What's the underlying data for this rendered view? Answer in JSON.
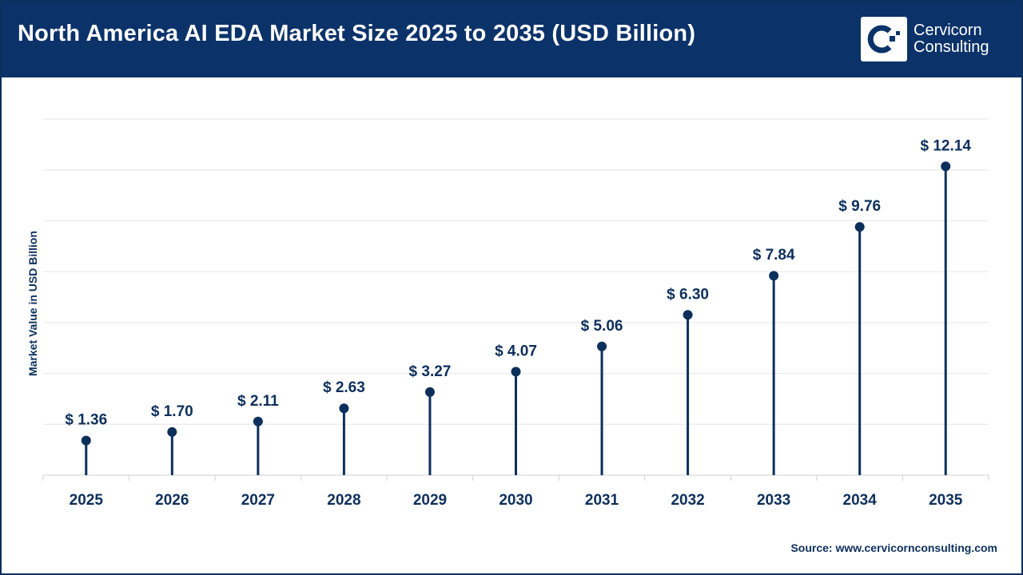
{
  "header": {
    "title": "North America AI EDA Market Size 2025 to 2035 (USD Billion)",
    "logo_line1": "Cervicorn",
    "logo_line2": "Consulting"
  },
  "source": "Source: www.cervicornconsulting.com",
  "colors": {
    "header_bg": "#0b3269",
    "series": "#0d2f5c",
    "grid": "#e6e6e6"
  },
  "chart_data": {
    "type": "lollipop",
    "title": "North America AI EDA Market Size 2025 to 2035 (USD Billion)",
    "xlabel": "",
    "ylabel": "Market Value in USD Billion",
    "categories": [
      "2025",
      "2026",
      "2027",
      "2028",
      "2029",
      "2030",
      "2031",
      "2032",
      "2033",
      "2034",
      "2035"
    ],
    "values": [
      1.36,
      1.7,
      2.11,
      2.63,
      3.27,
      4.07,
      5.06,
      6.3,
      7.84,
      9.76,
      12.14
    ],
    "data_labels": [
      "$ 1.36",
      "$ 1.70",
      "$ 2.11",
      "$ 2.63",
      "$ 3.27",
      "$ 4.07",
      "$ 5.06",
      "$ 6.30",
      "$ 7.84",
      "$ 9.76",
      "$ 12.14"
    ],
    "ylim": [
      0,
      14
    ],
    "grid": true,
    "y_tick_labels_shown": false
  }
}
